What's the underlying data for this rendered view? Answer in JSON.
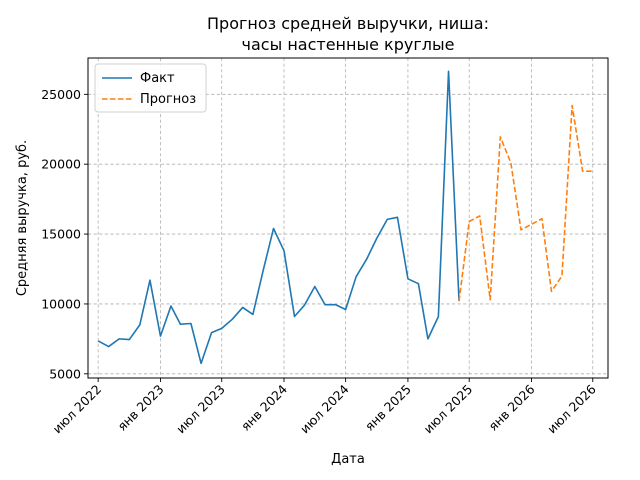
{
  "chart_data": {
    "type": "line",
    "title": [
      "Прогноз средней выручки, ниша:",
      "часы настенные круглые"
    ],
    "xlabel": "Дата",
    "ylabel": "Средняя выручка, руб.",
    "x_tick_labels": [
      "июл 2022",
      "янв 2023",
      "июл 2023",
      "янв 2024",
      "июл 2024",
      "янв 2025",
      "июл 2025",
      "янв 2026",
      "июл 2026"
    ],
    "y_ticks": [
      5000,
      10000,
      15000,
      20000,
      25000
    ],
    "ylim": [
      4700,
      27600
    ],
    "xlim": [
      "2022-06-01",
      "2026-08-15"
    ],
    "grid": true,
    "legend_position": "top-left",
    "series": [
      {
        "name": "Факт",
        "color": "#1f77b4",
        "style": "solid",
        "x": [
          "2022-07-01",
          "2022-08-01",
          "2022-09-01",
          "2022-10-01",
          "2022-11-01",
          "2022-12-01",
          "2023-01-01",
          "2023-02-01",
          "2023-03-01",
          "2023-04-01",
          "2023-05-01",
          "2023-06-01",
          "2023-07-01",
          "2023-08-01",
          "2023-09-01",
          "2023-10-01",
          "2023-11-01",
          "2023-12-01",
          "2024-01-01",
          "2024-02-01",
          "2024-03-01",
          "2024-04-01",
          "2024-05-01",
          "2024-06-01",
          "2024-07-01",
          "2024-08-01",
          "2024-09-01",
          "2024-10-01",
          "2024-11-01",
          "2024-12-01",
          "2025-01-01",
          "2025-02-01",
          "2025-03-01",
          "2025-04-01",
          "2025-05-01",
          "2025-06-01"
        ],
        "values": [
          7350,
          6950,
          7500,
          7450,
          8500,
          11700,
          7700,
          9850,
          8550,
          8600,
          5750,
          7950,
          8250,
          8900,
          9750,
          9250,
          12450,
          15400,
          13800,
          9100,
          9900,
          11250,
          9950,
          9950,
          9600,
          11950,
          13200,
          14700,
          16050,
          16200,
          11800,
          11450,
          7500,
          9100,
          26650,
          10200
        ]
      },
      {
        "name": "Прогноз",
        "color": "#ff7f0e",
        "style": "dashed",
        "x": [
          "2025-06-01",
          "2025-07-01",
          "2025-08-01",
          "2025-09-01",
          "2025-10-01",
          "2025-11-01",
          "2025-12-01",
          "2026-01-01",
          "2026-02-01",
          "2026-03-01",
          "2026-04-01",
          "2026-05-01",
          "2026-06-01",
          "2026-07-01"
        ],
        "values": [
          10200,
          15900,
          16300,
          10300,
          21950,
          20100,
          15300,
          15700,
          16100,
          10900,
          12000,
          24200,
          19500,
          19500
        ]
      }
    ]
  }
}
